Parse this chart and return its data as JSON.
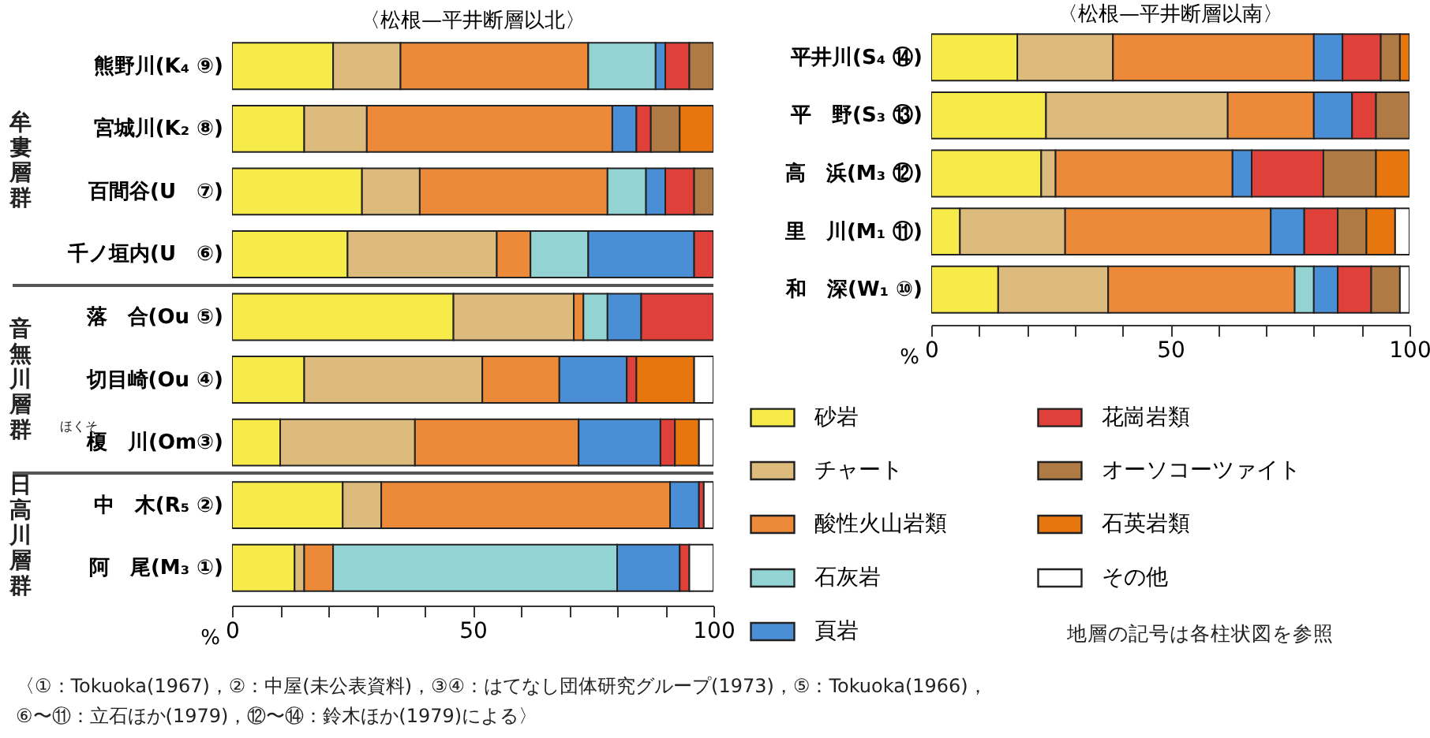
{
  "chart_data": [
    {
      "type": "bar",
      "orientation": "horizontal",
      "stacked": true,
      "title": "〈松根—平井断層以北〉",
      "xlabel": "%",
      "categories": [
        "熊野川(K₄ ⑨)",
        "宮城川(K₂ ⑧)",
        "百間谷(U　⑦)",
        "千ノ垣内(U　⑥)",
        "落　合(Ou ⑤)",
        "切目崎(Ou ④)",
        "榎　川(Om③)",
        "中　木(R₅ ②)",
        "阿　尾(M₃ ①)"
      ],
      "series": [
        {
          "color": "#f7eb4a",
          "values": [
            21,
            15,
            27,
            24,
            46,
            15,
            10,
            23,
            13
          ]
        },
        {
          "color": "#dcbb7c",
          "values": [
            14,
            13,
            12,
            31,
            25,
            37,
            28,
            8,
            2
          ]
        },
        {
          "color": "#ec8a3a",
          "values": [
            39,
            51,
            39,
            7,
            2,
            16,
            34,
            60,
            6
          ]
        },
        {
          "color": "#93d3d3",
          "values": [
            14,
            0,
            8,
            12,
            5,
            0,
            0,
            0,
            59
          ]
        },
        {
          "color": "#4a8fd6",
          "values": [
            2,
            5,
            4,
            22,
            7,
            14,
            17,
            6,
            13
          ]
        },
        {
          "color": "#e0403a",
          "values": [
            5,
            3,
            6,
            4,
            15,
            2,
            3,
            1,
            2
          ]
        },
        {
          "color": "#b07a45",
          "values": [
            5,
            6,
            4,
            0,
            0,
            0,
            0,
            0,
            0
          ]
        },
        {
          "color": "#e8760f",
          "values": [
            0,
            7,
            0,
            0,
            0,
            12,
            5,
            0,
            0
          ]
        },
        {
          "color": "#ffffff",
          "values": [
            0,
            0,
            0,
            0,
            0,
            4,
            3,
            2,
            5
          ]
        }
      ],
      "xlim": [
        0,
        100
      ],
      "xticks": [
        0,
        {
          "value": 10,
          "label": null
        },
        {
          "value": 20,
          "label": null
        },
        {
          "value": 30,
          "label": null
        },
        {
          "value": 40,
          "label": null
        },
        50,
        {
          "value": 60,
          "label": null
        },
        {
          "value": 70,
          "label": null
        },
        {
          "value": 80,
          "label": null
        },
        {
          "value": 90,
          "label": null
        },
        100
      ],
      "grid": false,
      "legend": false,
      "annotations": [
        "牟婁層群",
        "音無川層群",
        "日高川層群",
        "ほくそ",
        "〈①：Tokuoka(1967)，②：中屋(未公表資料)，③④：はてなし団体研究グループ(1973)，⑤：Tokuoka(1966)，\n⑥〜⑪：立石ほか(1979)，⑫〜⑭：鈴木ほか(1979)による〉"
      ]
    },
    {
      "type": "bar",
      "orientation": "horizontal",
      "stacked": true,
      "title": "〈松根—平井断層以南〉",
      "xlabel": "%",
      "categories": [
        "平井川(S₄ ⑭)",
        "平　野(S₃ ⑬)",
        "高　浜(M₃ ⑫)",
        "里　川(M₁ ⑪)",
        "和　深(W₁ ⑩)"
      ],
      "series": [
        {
          "name": "砂岩",
          "color": "#f7eb4a",
          "values": [
            18,
            24,
            23,
            6,
            14
          ]
        },
        {
          "name": "チャート",
          "color": "#dcbb7c",
          "values": [
            20,
            38,
            3,
            22,
            23
          ]
        },
        {
          "name": "酸性火山岩類",
          "color": "#ec8a3a",
          "values": [
            42,
            18,
            37,
            43,
            39
          ]
        },
        {
          "name": "石灰岩",
          "color": "#93d3d3",
          "values": [
            0,
            0,
            0,
            0,
            4
          ]
        },
        {
          "name": "頁岩",
          "color": "#4a8fd6",
          "values": [
            6,
            8,
            4,
            7,
            5
          ]
        },
        {
          "name": "花崗岩類",
          "color": "#e0403a",
          "values": [
            8,
            5,
            15,
            7,
            7
          ]
        },
        {
          "name": "オーソコーツァイト",
          "color": "#b07a45",
          "values": [
            4,
            7,
            11,
            6,
            6
          ]
        },
        {
          "name": "石英岩類",
          "color": "#e8760f",
          "values": [
            2,
            0,
            7,
            6,
            0
          ]
        },
        {
          "name": "その他",
          "color": "#ffffff",
          "values": [
            0,
            0,
            0,
            3,
            2
          ]
        }
      ],
      "xlim": [
        0,
        100
      ],
      "xticks": [
        0,
        {
          "value": 10,
          "label": null
        },
        {
          "value": 20,
          "label": null
        },
        {
          "value": 30,
          "label": null
        },
        {
          "value": 40,
          "label": null
        },
        50,
        {
          "value": 60,
          "label": null
        },
        {
          "value": 70,
          "label": null
        },
        {
          "value": 80,
          "label": null
        },
        {
          "value": 90,
          "label": null
        },
        100
      ],
      "grid": false,
      "legend": "bottom",
      "annotations": [
        "地層の記号は各柱状図を参照"
      ]
    }
  ]
}
